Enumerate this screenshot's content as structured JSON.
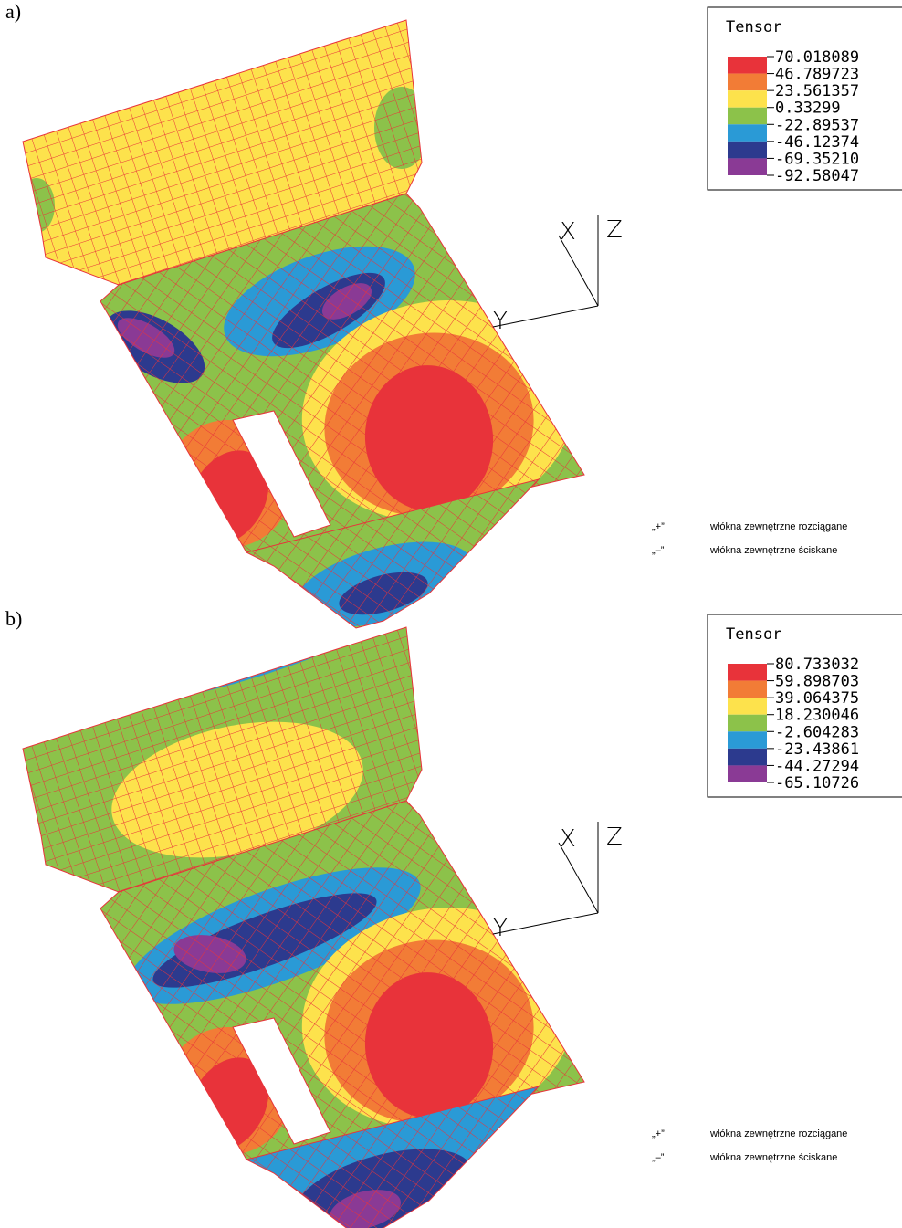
{
  "colors": [
    "#e8333a",
    "#f27c36",
    "#fde24c",
    "#8cc24a",
    "#2a9ad6",
    "#2c3a8e",
    "#8a3a95"
  ],
  "panels": [
    {
      "label": "a)",
      "legend": {
        "title": "Tensor",
        "values": [
          "70.018089",
          "46.789723",
          "23.561357",
          "0.33299",
          "-22.89537",
          "-46.12374",
          "-69.35210",
          "-92.58047"
        ]
      },
      "axes": {
        "x": "X",
        "y": "Y",
        "z": "Z"
      },
      "notes": [
        {
          "sign": "„+”",
          "text": "włókna zewnętrzne rozciągane"
        },
        {
          "sign": "„–”",
          "text": "włókna zewnętrzne ściskane"
        }
      ]
    },
    {
      "label": "b)",
      "legend": {
        "title": "Tensor",
        "values": [
          "80.733032",
          "59.898703",
          "39.064375",
          "18.230046",
          "-2.604283",
          "-23.43861",
          "-44.27294",
          "-65.10726"
        ]
      },
      "axes": {
        "x": "X",
        "y": "Y",
        "z": "Z"
      },
      "notes": [
        {
          "sign": "„+”",
          "text": "włókna zewnętrzne rozciągane"
        },
        {
          "sign": "„–”",
          "text": "włókna zewnętrzne ściskane"
        }
      ]
    }
  ]
}
